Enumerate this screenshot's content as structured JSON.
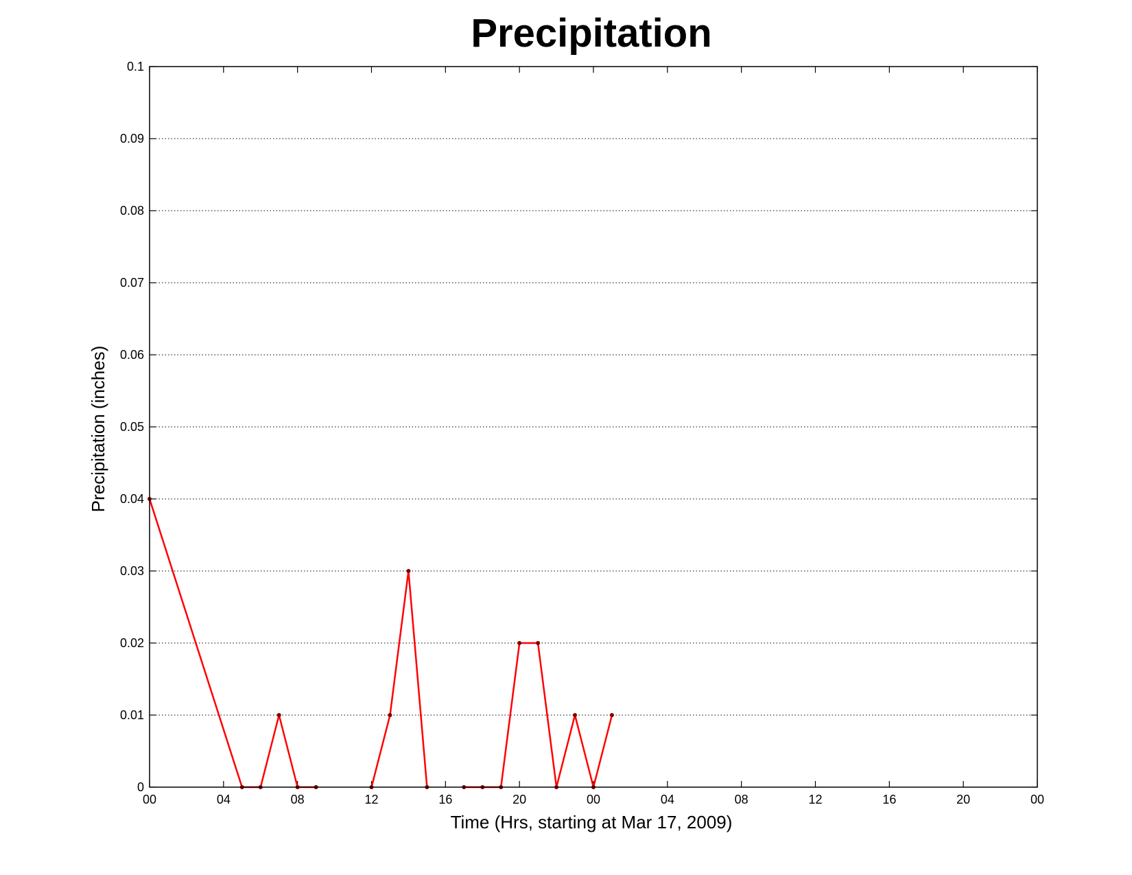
{
  "chart_data": {
    "type": "line",
    "title": "Precipitation",
    "xlabel": "Time (Hrs, starting at Mar 17, 2009)",
    "ylabel": "Precipitation (inches)",
    "xlim": [
      0,
      48
    ],
    "ylim": [
      0,
      0.1
    ],
    "grid": true,
    "x_ticks": [
      0,
      4,
      8,
      12,
      16,
      20,
      24,
      28,
      32,
      36,
      40,
      44,
      48
    ],
    "x_tick_labels": [
      "00",
      "04",
      "08",
      "12",
      "16",
      "20",
      "00",
      "04",
      "08",
      "12",
      "16",
      "20",
      "00"
    ],
    "y_ticks": [
      0,
      0.01,
      0.02,
      0.03,
      0.04,
      0.05,
      0.06,
      0.07,
      0.08,
      0.09,
      0.1
    ],
    "y_tick_labels": [
      "0",
      "0.01",
      "0.02",
      "0.03",
      "0.04",
      "0.05",
      "0.06",
      "0.07",
      "0.08",
      "0.09",
      "0.1"
    ],
    "series": [
      {
        "color": "#ff0000",
        "marker_color": "#800000",
        "points": [
          {
            "x": 0,
            "y": 0.04
          },
          {
            "x": 5,
            "y": 0
          },
          {
            "x": 6,
            "y": 0
          },
          {
            "x": 7,
            "y": 0.01
          },
          {
            "x": 8,
            "y": 0
          },
          {
            "x": 9,
            "y": 0
          },
          {
            "x": null,
            "y": null
          },
          {
            "x": 12,
            "y": 0
          },
          {
            "x": 13,
            "y": 0.01
          },
          {
            "x": 14,
            "y": 0.03
          },
          {
            "x": 15,
            "y": 0
          },
          {
            "x": null,
            "y": null
          },
          {
            "x": 17,
            "y": 0
          },
          {
            "x": 18,
            "y": 0
          },
          {
            "x": 19,
            "y": 0
          },
          {
            "x": 20,
            "y": 0.02
          },
          {
            "x": 21,
            "y": 0.02
          },
          {
            "x": 22,
            "y": 0
          },
          {
            "x": 23,
            "y": 0.01
          },
          {
            "x": 24,
            "y": 0
          },
          {
            "x": 25,
            "y": 0.01
          }
        ]
      }
    ]
  }
}
